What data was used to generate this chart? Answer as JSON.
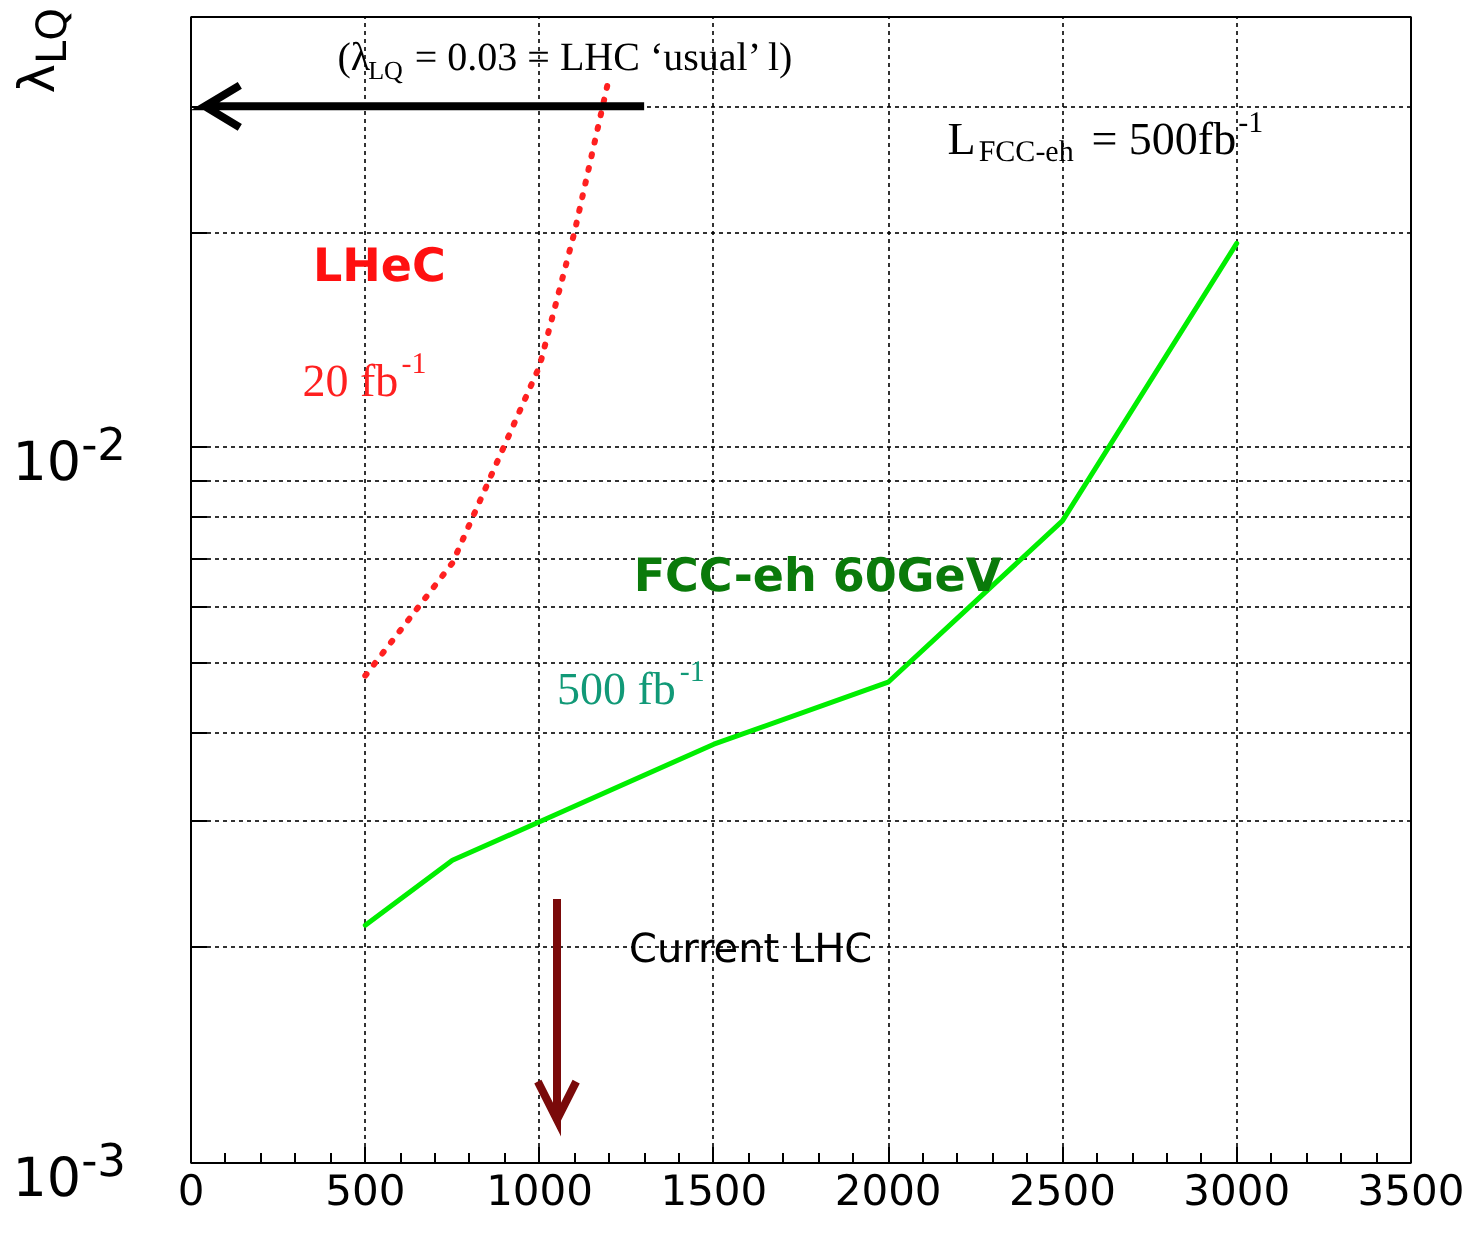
{
  "chart_data": {
    "type": "line",
    "ylabel": "λ$_{LQ}$",
    "xlim": [
      0,
      3500
    ],
    "xticks": [
      0,
      500,
      1000,
      1500,
      2000,
      2500,
      3000,
      3500
    ],
    "ylim": [
      0.001,
      0.04
    ],
    "log": "y",
    "yticks": [
      {
        "value": 0.001,
        "label": "10$^{-3}$"
      },
      {
        "value": 0.002,
        "label": null
      },
      {
        "value": 0.003,
        "label": null
      },
      {
        "value": 0.004,
        "label": null
      },
      {
        "value": 0.005,
        "label": null
      },
      {
        "value": 0.006,
        "label": null
      },
      {
        "value": 0.007,
        "label": null
      },
      {
        "value": 0.008,
        "label": null
      },
      {
        "value": 0.009,
        "label": null
      },
      {
        "value": 0.01,
        "label": "10$^{-2}$"
      },
      {
        "value": 0.02,
        "label": null
      },
      {
        "value": 0.03,
        "label": null
      }
    ],
    "grid": true,
    "x": [
      500,
      750,
      1000,
      1500,
      2000,
      2500,
      3000
    ],
    "series": [
      {
        "name": "LHeC",
        "color": "#ff2020",
        "line_style": "dotted",
        "x": [
          500,
          750,
          1000,
          1100,
          1200
        ],
        "values": [
          0.0048,
          0.0069,
          0.013,
          0.02,
          0.033
        ]
      },
      {
        "name": "FCC-eh 60GeV",
        "color": "#00ee00",
        "line_style": "solid",
        "values": [
          0.00215,
          0.00265,
          0.003,
          0.00385,
          0.0047,
          0.0079,
          0.0193
        ]
      }
    ],
    "ref_lines": [
      {
        "axis": "y",
        "value": 0.03,
        "label": "(λ$_{LQ}$ = 0.03 = LHC ‘usual’ l)",
        "color": "#000000"
      },
      {
        "axis": "x",
        "value": 1050,
        "label": "Current LHC",
        "color": "#7a0a0a"
      }
    ],
    "annotations": [
      "L$_{FCC-eh}$ = 500fb$^{-1}$",
      "20 fb$^{-1}$",
      "500 fb$^{-1}$"
    ]
  }
}
